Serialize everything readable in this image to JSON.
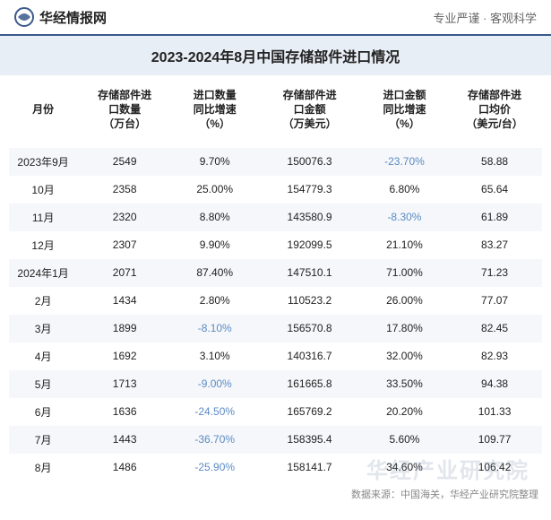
{
  "header": {
    "brand": "华经情报网",
    "logo_color": "#3a5a8a",
    "tagline": "专业严谨 · 客观科学"
  },
  "title": "2023-2024年8月中国存储部件进口情况",
  "columns": [
    "月份",
    "存储部件进口数量（万台）",
    "进口数量同比增速（%）",
    "存储部件进口金额（万美元）",
    "进口金额同比增速（%）",
    "存储部件进口均价（美元/台）"
  ],
  "column_headers_multiline": [
    [
      "月份"
    ],
    [
      "存储部件进",
      "口数量",
      "（万台）"
    ],
    [
      "进口数量",
      "同比增速",
      "（%）"
    ],
    [
      "存储部件进",
      "口金额",
      "（万美元）"
    ],
    [
      "进口金额",
      "同比增速",
      "（%）"
    ],
    [
      "存储部件进",
      "口均价",
      "（美元/台）"
    ]
  ],
  "rows": [
    {
      "month": "2023年9月",
      "qty": "2549",
      "qty_growth": "9.70%",
      "qty_growth_neg": false,
      "amount": "150076.3",
      "amt_growth": "-23.70%",
      "amt_growth_neg": true,
      "price": "58.88"
    },
    {
      "month": "10月",
      "qty": "2358",
      "qty_growth": "25.00%",
      "qty_growth_neg": false,
      "amount": "154779.3",
      "amt_growth": "6.80%",
      "amt_growth_neg": false,
      "price": "65.64"
    },
    {
      "month": "11月",
      "qty": "2320",
      "qty_growth": "8.80%",
      "qty_growth_neg": false,
      "amount": "143580.9",
      "amt_growth": "-8.30%",
      "amt_growth_neg": true,
      "price": "61.89"
    },
    {
      "month": "12月",
      "qty": "2307",
      "qty_growth": "9.90%",
      "qty_growth_neg": false,
      "amount": "192099.5",
      "amt_growth": "21.10%",
      "amt_growth_neg": false,
      "price": "83.27"
    },
    {
      "month": "2024年1月",
      "qty": "2071",
      "qty_growth": "87.40%",
      "qty_growth_neg": false,
      "amount": "147510.1",
      "amt_growth": "71.00%",
      "amt_growth_neg": false,
      "price": "71.23"
    },
    {
      "month": "2月",
      "qty": "1434",
      "qty_growth": "2.80%",
      "qty_growth_neg": false,
      "amount": "110523.2",
      "amt_growth": "26.00%",
      "amt_growth_neg": false,
      "price": "77.07"
    },
    {
      "month": "3月",
      "qty": "1899",
      "qty_growth": "-8.10%",
      "qty_growth_neg": true,
      "amount": "156570.8",
      "amt_growth": "17.80%",
      "amt_growth_neg": false,
      "price": "82.45"
    },
    {
      "month": "4月",
      "qty": "1692",
      "qty_growth": "3.10%",
      "qty_growth_neg": false,
      "amount": "140316.7",
      "amt_growth": "32.00%",
      "amt_growth_neg": false,
      "price": "82.93"
    },
    {
      "month": "5月",
      "qty": "1713",
      "qty_growth": "-9.00%",
      "qty_growth_neg": true,
      "amount": "161665.8",
      "amt_growth": "33.50%",
      "amt_growth_neg": false,
      "price": "94.38"
    },
    {
      "month": "6月",
      "qty": "1636",
      "qty_growth": "-24.50%",
      "qty_growth_neg": true,
      "amount": "165769.2",
      "amt_growth": "20.20%",
      "amt_growth_neg": false,
      "price": "101.33"
    },
    {
      "month": "7月",
      "qty": "1443",
      "qty_growth": "-36.70%",
      "qty_growth_neg": true,
      "amount": "158395.4",
      "amt_growth": "5.60%",
      "amt_growth_neg": false,
      "price": "109.77"
    },
    {
      "month": "8月",
      "qty": "1486",
      "qty_growth": "-25.90%",
      "qty_growth_neg": true,
      "amount": "158141.7",
      "amt_growth": "34.60%",
      "amt_growth_neg": false,
      "price": "106.42"
    }
  ],
  "colors": {
    "header_border": "#3a5a8a",
    "title_bg": "#e8eef5",
    "stripe_even": "#f5f7fa",
    "stripe_odd": "#ffffff",
    "text": "#222222",
    "negative": "#5b8bc4",
    "source_text": "#888888",
    "watermark": "rgba(120,140,170,0.22)"
  },
  "source_line": "数据来源：中国海关，华经产业研究院整理",
  "watermark_text": "华经产业研究院"
}
